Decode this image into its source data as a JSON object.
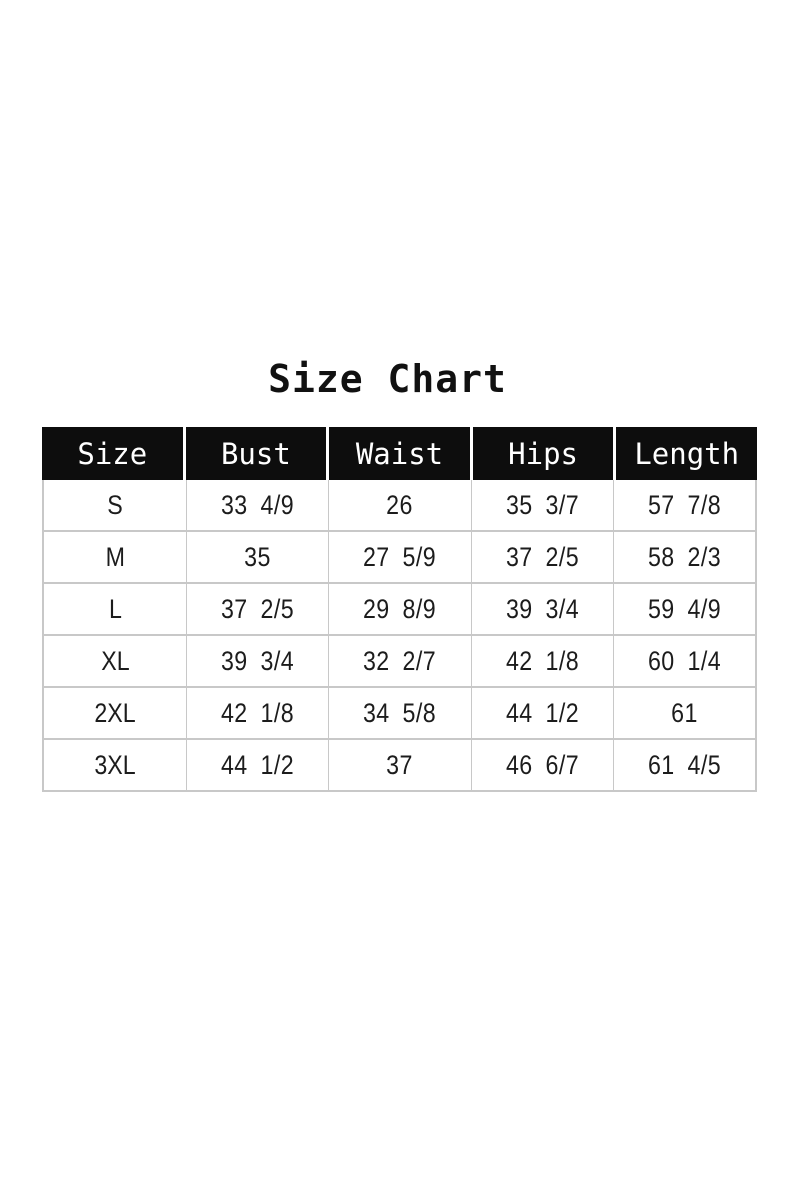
{
  "page": {
    "title": "Size Chart"
  },
  "theme": {
    "background": "#ffffff",
    "header-bg": "#0d0d0d",
    "header-text": "#ffffff",
    "grid-line": "#c8c8c8",
    "body-text": "#1c1c1c"
  },
  "table": {
    "headers": [
      "Size",
      "Bust",
      "Waist",
      "Hips",
      "Length"
    ],
    "rows": [
      {
        "size": "S",
        "bust": "33 4/9",
        "waist": "26",
        "hips": "35 3/7",
        "length": "57 7/8"
      },
      {
        "size": "M",
        "bust": "35",
        "waist": "27 5/9",
        "hips": "37 2/5",
        "length": "58 2/3"
      },
      {
        "size": "L",
        "bust": "37 2/5",
        "waist": "29 8/9",
        "hips": "39 3/4",
        "length": "59 4/9"
      },
      {
        "size": "XL",
        "bust": "39 3/4",
        "waist": "32 2/7",
        "hips": "42 1/8",
        "length": "60 1/4"
      },
      {
        "size": "2XL",
        "bust": "42 1/8",
        "waist": "34 5/8",
        "hips": "44 1/2",
        "length": "61"
      },
      {
        "size": "3XL",
        "bust": "44 1/2",
        "waist": "37",
        "hips": "46 6/7",
        "length": "61 4/5"
      }
    ]
  },
  "chart_data": {
    "type": "table",
    "title": "Size Chart",
    "columns": [
      "Size",
      "Bust",
      "Waist",
      "Hips",
      "Length"
    ],
    "rows": [
      [
        "S",
        "33 4/9",
        "26",
        "35 3/7",
        "57 7/8"
      ],
      [
        "M",
        "35",
        "27 5/9",
        "37 2/5",
        "58 2/3"
      ],
      [
        "L",
        "37 2/5",
        "29 8/9",
        "39 3/4",
        "59 4/9"
      ],
      [
        "XL",
        "39 3/4",
        "32 2/7",
        "42 1/8",
        "60 1/4"
      ],
      [
        "2XL",
        "42 1/8",
        "34 5/8",
        "44 1/2",
        "61"
      ],
      [
        "3XL",
        "44 1/2",
        "37",
        "46 6/7",
        "61 4/5"
      ]
    ]
  }
}
